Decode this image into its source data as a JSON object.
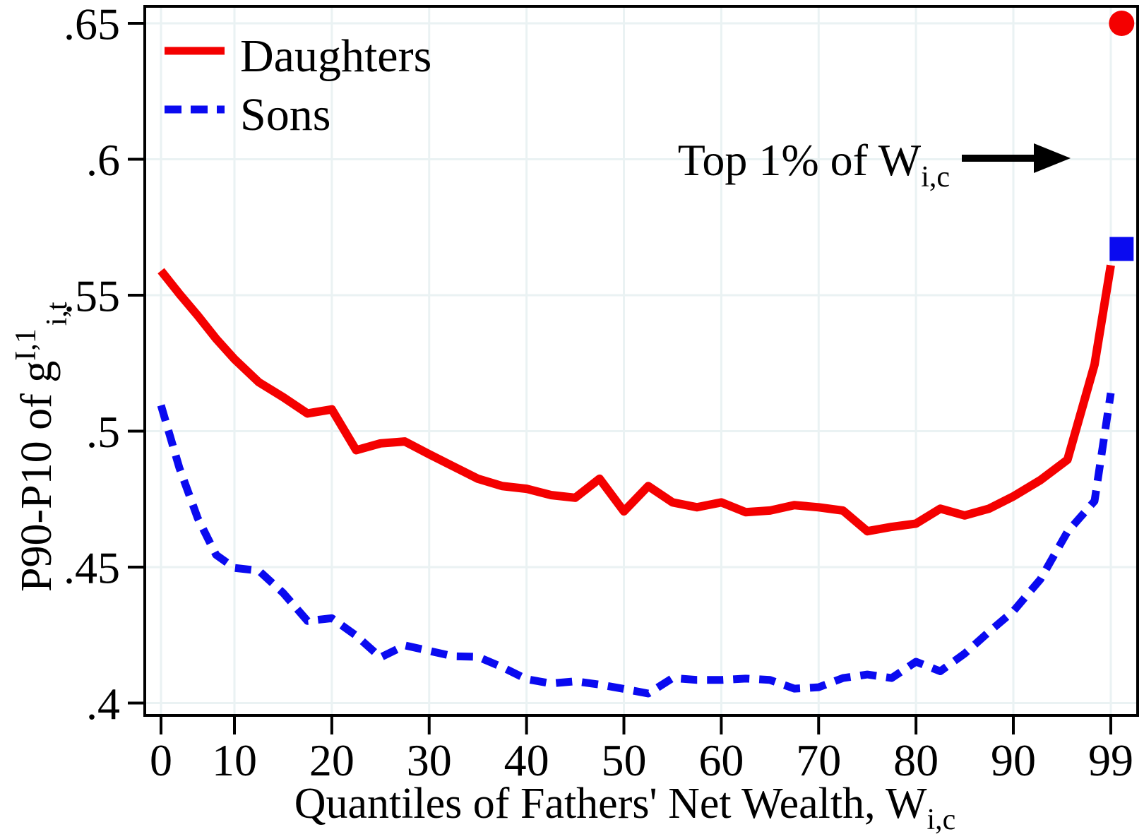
{
  "legend": {
    "daughters_label": "Daughters",
    "sons_label": "Sons"
  },
  "annotation": {
    "text": "Top 1% of W",
    "subscript": "i,c"
  },
  "axes": {
    "y_title_main": "P90-P10 of g",
    "y_title_sup": "I,1",
    "y_title_sub": "i,t",
    "x_title_main": "Quantiles of Fathers' Net Wealth, W",
    "x_title_sub": "i,c",
    "y_tick_labels": [
      ".65",
      ".6",
      ".55",
      ".5",
      ".45",
      ".4"
    ],
    "y_tick_values": [
      0.65,
      0.6,
      0.55,
      0.5,
      0.45,
      0.4
    ],
    "x_tick_labels": [
      "0",
      "10",
      "20",
      "30",
      "40",
      "50",
      "60",
      "70",
      "80",
      "90",
      "99"
    ],
    "x_tick_values": [
      0,
      10,
      20,
      30,
      40,
      50,
      60,
      70,
      80,
      90,
      99
    ]
  },
  "colors": {
    "daughters": "#f40000",
    "sons": "#0a0af0",
    "gridline": "#eaf2f3",
    "spine": "#000000",
    "arrow": "#000000"
  },
  "chart_data": {
    "type": "line",
    "title": "",
    "xlabel": "Quantiles of Fathers' Net Wealth, W_i,c",
    "ylabel": "P90-P10 of g^I,1_i,t",
    "ylim": [
      0.395,
      0.657
    ],
    "grid": true,
    "legend_position": "top-left-inside",
    "x": [
      0,
      2.5,
      5,
      7.5,
      10,
      12.5,
      15,
      17.5,
      20,
      22.5,
      25,
      27.5,
      30,
      32.5,
      35,
      37.5,
      40,
      42.5,
      45,
      47.5,
      50,
      52.5,
      55,
      57.5,
      60,
      62.5,
      65,
      67.5,
      70,
      72.5,
      75,
      77.5,
      80,
      82.5,
      85,
      87.5,
      90,
      92.5,
      95,
      97.5,
      99
    ],
    "series": [
      {
        "name": "Daughters",
        "style": "solid",
        "values": [
          0.559,
          0.5505,
          0.5425,
          0.534,
          0.5265,
          0.518,
          0.5125,
          0.5065,
          0.508,
          0.493,
          0.4955,
          0.4962,
          0.4915,
          0.487,
          0.4825,
          0.4798,
          0.4788,
          0.4765,
          0.4755,
          0.4825,
          0.4705,
          0.4798,
          0.4738,
          0.472,
          0.4738,
          0.4702,
          0.4708,
          0.4728,
          0.472,
          0.4708,
          0.4632,
          0.4648,
          0.466,
          0.4715,
          0.469,
          0.4715,
          0.476,
          0.482,
          0.4895,
          0.5245,
          0.561
        ]
      },
      {
        "name": "Sons",
        "style": "dashed",
        "values": [
          0.5095,
          0.4865,
          0.468,
          0.4545,
          0.4497,
          0.4487,
          0.4405,
          0.4302,
          0.4312,
          0.4248,
          0.4168,
          0.4212,
          0.4192,
          0.4172,
          0.417,
          0.4132,
          0.4088,
          0.4072,
          0.408,
          0.4068,
          0.4052,
          0.4035,
          0.4092,
          0.4085,
          0.4085,
          0.409,
          0.4085,
          0.4053,
          0.4058,
          0.4092,
          0.4105,
          0.4092,
          0.4152,
          0.4117,
          0.4182,
          0.4262,
          0.4338,
          0.4455,
          0.463,
          0.4743,
          0.514
        ]
      }
    ],
    "top1_markers": [
      {
        "series": "Daughters",
        "x": 100,
        "value": 0.65,
        "shape": "circle"
      },
      {
        "series": "Sons",
        "x": 100,
        "value": 0.567,
        "shape": "square"
      }
    ]
  }
}
